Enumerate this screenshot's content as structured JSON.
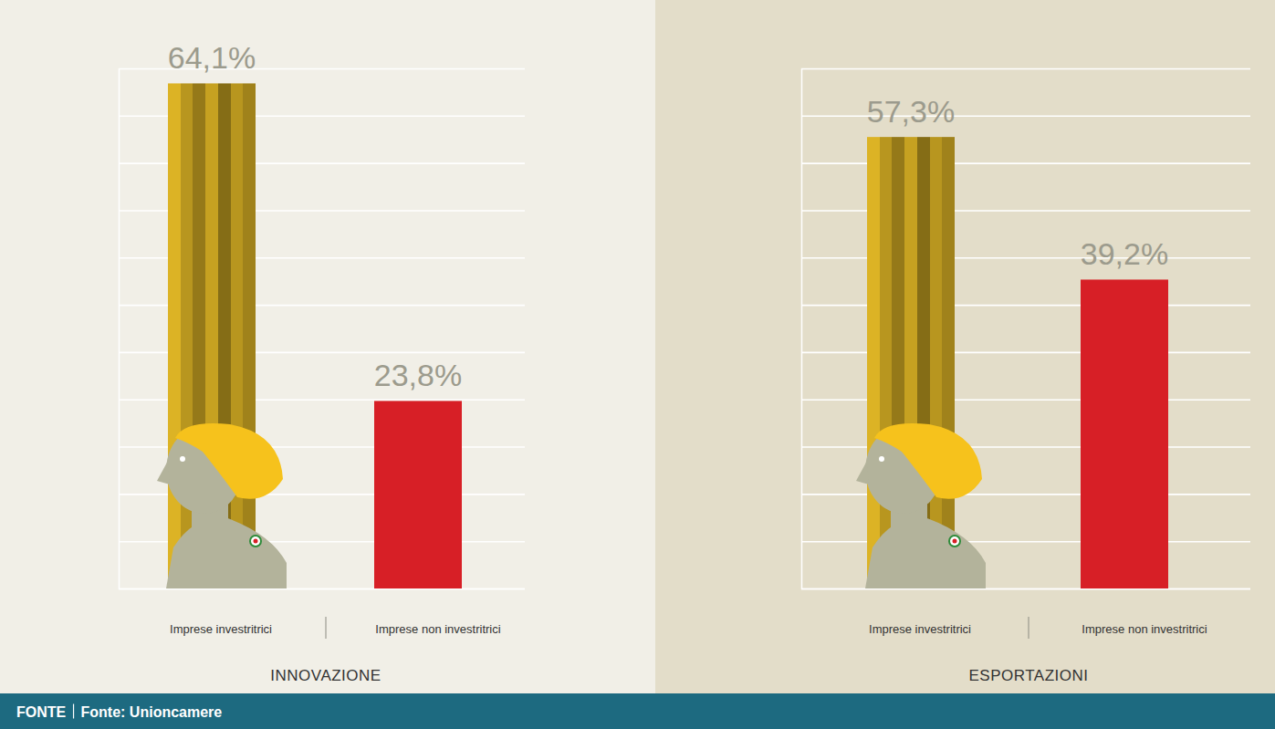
{
  "chart_data": [
    {
      "type": "bar",
      "title": "INNOVAZIONE",
      "categories": [
        "Imprese investritrici",
        "Imprese non investritrici"
      ],
      "values": [
        64.1,
        23.8
      ],
      "value_labels": [
        "64,1%",
        "23,8%"
      ],
      "colors": [
        "#b8961f",
        "#d71f26"
      ],
      "ylim": [
        0,
        66
      ],
      "yticks": [
        0,
        6,
        12,
        18,
        24,
        30,
        36,
        42,
        48,
        54,
        60
      ],
      "grid": true,
      "data_labels": true,
      "tick_labels": false
    },
    {
      "type": "bar",
      "title": "ESPORTAZIONI",
      "categories": [
        "Imprese investritrici",
        "Imprese non investritrici"
      ],
      "values": [
        57.3,
        39.2
      ],
      "value_labels": [
        "57,3%",
        "39,2%"
      ],
      "colors": [
        "#b8961f",
        "#d71f26"
      ],
      "ylim": [
        0,
        66
      ],
      "yticks": [
        0,
        6,
        12,
        18,
        24,
        30,
        36,
        42,
        48,
        54,
        60
      ],
      "grid": true,
      "data_labels": true,
      "tick_labels": false
    }
  ],
  "footer": {
    "label": "FONTE",
    "text": "Fonte: Unioncamere"
  }
}
